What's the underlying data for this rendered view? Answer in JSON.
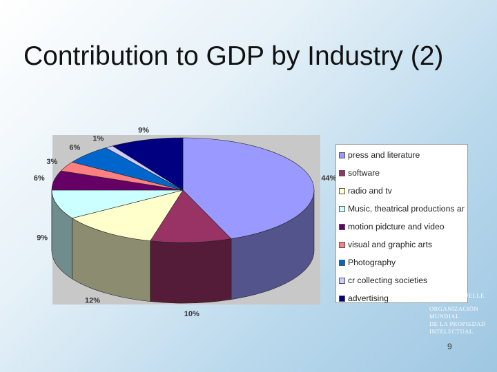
{
  "slide": {
    "title": "Contribution to GDP by Industry (2)",
    "page_number": "9"
  },
  "watermark": {
    "fr_line": "INTELLECTUELLE",
    "es_lines": [
      "ORGANIZACIÓN",
      "MUNDIAL",
      "DE LA PROPIEDAD",
      "INTELECTUAL"
    ]
  },
  "chart_data": {
    "type": "pie",
    "title": "",
    "categories": [
      "press and literature",
      "software",
      "radio and tv",
      "Music, theatrical productions and opera",
      "motion pidcture and video",
      "visual and graphic arts",
      "Photography",
      "cr collecting societies",
      "advertising"
    ],
    "values": [
      44,
      10,
      12,
      9,
      6,
      3,
      6,
      1,
      9
    ],
    "labels": [
      "44%",
      "10%",
      "12%",
      "9%",
      "6%",
      "3%",
      "6%",
      "1%",
      "9%"
    ],
    "colors": [
      "#9999ff",
      "#993366",
      "#ffffcc",
      "#ccffff",
      "#660066",
      "#ff8080",
      "#0066cc",
      "#ccccff",
      "#000080"
    ],
    "legend_position": "right",
    "three_d": true
  }
}
